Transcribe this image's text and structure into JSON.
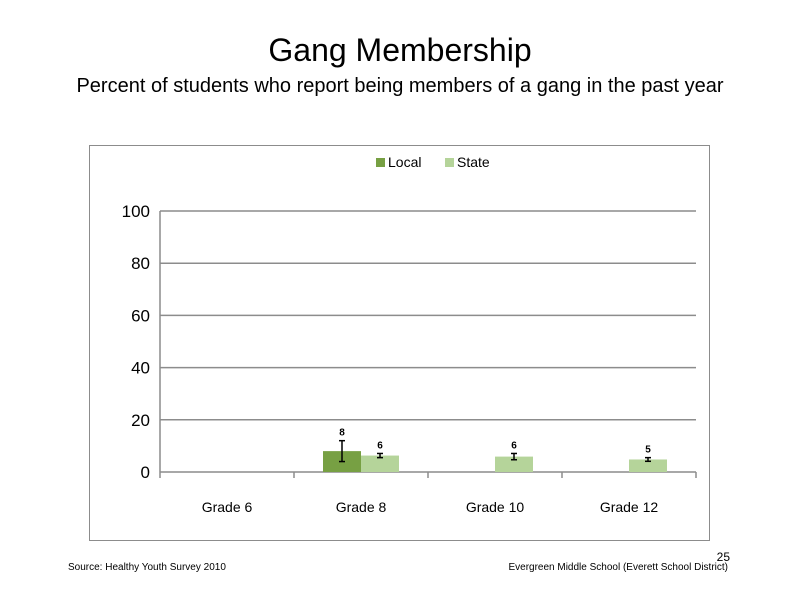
{
  "slide": {
    "title": "Gang Membership",
    "subtitle": "Percent of students who report being members of a gang in the past year",
    "source": "Source: Healthy Youth Survey 2010",
    "school": "Evergreen Middle School (Everett School District)",
    "page_number": "25"
  },
  "colors": {
    "local": "#77a043",
    "state": "#b5d49a",
    "gridline": "#8c8c8c",
    "axis": "#8c8c8c"
  },
  "chart_data": {
    "type": "bar",
    "title": "",
    "xlabel": "",
    "ylabel": "",
    "categories": [
      "Grade 6",
      "Grade 8",
      "Grade 10",
      "Grade 12"
    ],
    "series": [
      {
        "name": "Local",
        "values": [
          null,
          8,
          null,
          null
        ],
        "labels": [
          "",
          "8",
          "",
          ""
        ],
        "error": [
          null,
          4,
          null,
          null
        ]
      },
      {
        "name": "State",
        "values": [
          null,
          6.3,
          5.9,
          4.8
        ],
        "labels": [
          "",
          "6",
          "6",
          "5"
        ],
        "error": [
          null,
          0.8,
          1.2,
          0.7
        ]
      }
    ],
    "ylim": [
      0,
      100
    ],
    "yticks": [
      "0",
      "20",
      "40",
      "60",
      "80",
      "100"
    ],
    "ytick_values": [
      0,
      20,
      40,
      60,
      80,
      100
    ],
    "grid": true,
    "legend_position": "top"
  }
}
